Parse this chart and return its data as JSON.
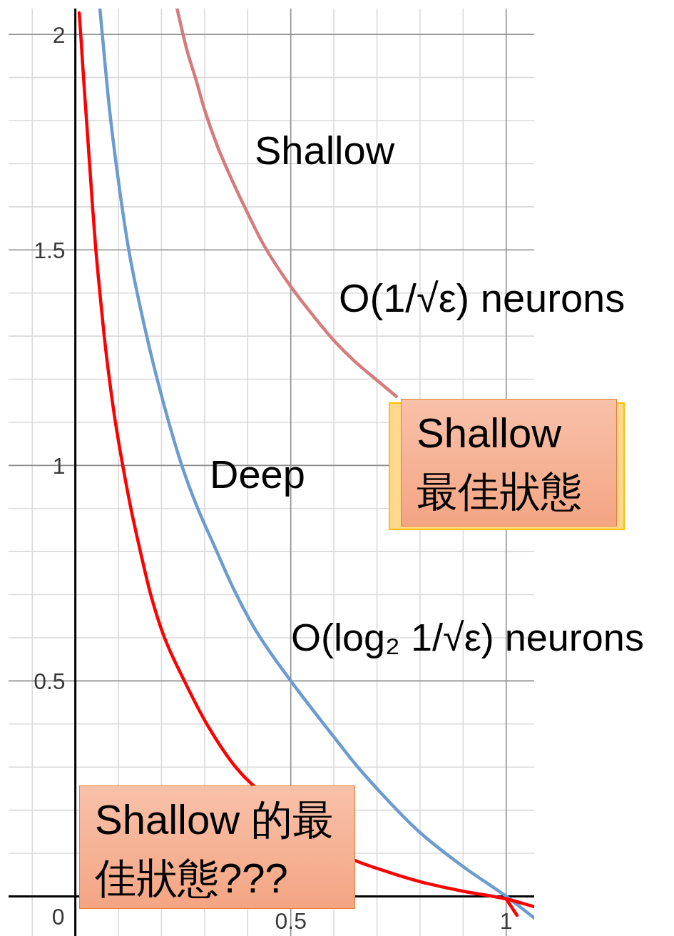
{
  "chart_data": {
    "type": "line",
    "xlim": [
      -0.155,
      1.065
    ],
    "ylim": [
      -0.092,
      2.06
    ],
    "xticks": [
      {
        "value": -0.1,
        "label": null
      },
      0,
      {
        "value": 0.1,
        "label": null
      },
      {
        "value": 0.2,
        "label": null
      },
      {
        "value": 0.3,
        "label": null
      },
      {
        "value": 0.4,
        "label": null
      },
      0.5,
      {
        "value": 0.6,
        "label": null
      },
      {
        "value": 0.7,
        "label": null
      },
      {
        "value": 0.8,
        "label": null
      },
      {
        "value": 0.9,
        "label": null
      },
      1
    ],
    "yticks": [
      {
        "value": 0,
        "label": null
      },
      {
        "value": 0.1,
        "label": null
      },
      {
        "value": 0.2,
        "label": null
      },
      {
        "value": 0.3,
        "label": null
      },
      {
        "value": 0.4,
        "label": null
      },
      0.5,
      {
        "value": 0.6,
        "label": null
      },
      {
        "value": 0.7,
        "label": null
      },
      {
        "value": 0.8,
        "label": null
      },
      {
        "value": 0.9,
        "label": null
      },
      1,
      {
        "value": 1.1,
        "label": null
      },
      {
        "value": 1.2,
        "label": null
      },
      {
        "value": 1.3,
        "label": null
      },
      {
        "value": 1.4,
        "label": null
      },
      1.5,
      {
        "value": 1.6,
        "label": null
      },
      {
        "value": 1.7,
        "label": null
      },
      {
        "value": 1.8,
        "label": null
      },
      {
        "value": 1.9,
        "label": null
      },
      2
    ],
    "grid": true,
    "series": [
      {
        "name": "Shallow",
        "color": "#d67b7b",
        "x": [
          0.236,
          0.26,
          0.28,
          0.3,
          0.33,
          0.36,
          0.4,
          0.438,
          0.5,
          0.55,
          0.6,
          0.65,
          0.697,
          0.745
        ],
        "values": [
          2.06,
          1.96,
          1.895,
          1.825,
          1.74,
          1.67,
          1.585,
          1.51,
          1.415,
          1.35,
          1.29,
          1.24,
          1.2,
          1.16
        ]
      },
      {
        "name": "Deep",
        "color": "#6b9bd0",
        "x": [
          0.057,
          0.07,
          0.08,
          0.1,
          0.124,
          0.15,
          0.19,
          0.247,
          0.28,
          0.324,
          0.369,
          0.42,
          0.5,
          0.6,
          0.654,
          0.7,
          0.8,
          0.9,
          1,
          1.065
        ],
        "values": [
          2.06,
          1.92,
          1.82,
          1.66,
          1.5,
          1.37,
          1.2,
          1.0,
          0.91,
          0.81,
          0.71,
          0.615,
          0.5,
          0.37,
          0.302,
          0.25,
          0.148,
          0.069,
          0,
          -0.05
        ]
      },
      {
        "color": "#ff0000",
        "x": [
          0.009,
          0.0125,
          0.019,
          0.026,
          0.033,
          0.04,
          0.0476,
          0.057,
          0.067,
          0.079,
          0.093,
          0.11,
          0.129,
          0.151,
          0.175,
          0.207,
          0.253,
          0.305,
          0.372,
          0.41,
          0.65,
          0.7,
          0.8,
          0.9,
          1,
          1.065
        ],
        "values": [
          2.05,
          2.0,
          1.9,
          1.8,
          1.7,
          1.6,
          1.5,
          1.4,
          1.3,
          1.2,
          1.1,
          1.0,
          0.9,
          0.8,
          0.7,
          0.6,
          0.5,
          0.4,
          0.3,
          0.26,
          0.083,
          0.065,
          0.034,
          0.012,
          -0.006,
          -0.024
        ]
      },
      {
        "color": "#ff0000",
        "x": [
          1,
          1.025
        ],
        "values": [
          -0.006,
          -0.044
        ]
      }
    ],
    "annotations": [
      "O(1/√ε) neurons",
      "Shallow 最佳狀態",
      "O(log₂ 1/√ε) neurons",
      "Shallow 的最佳狀態???"
    ]
  }
}
